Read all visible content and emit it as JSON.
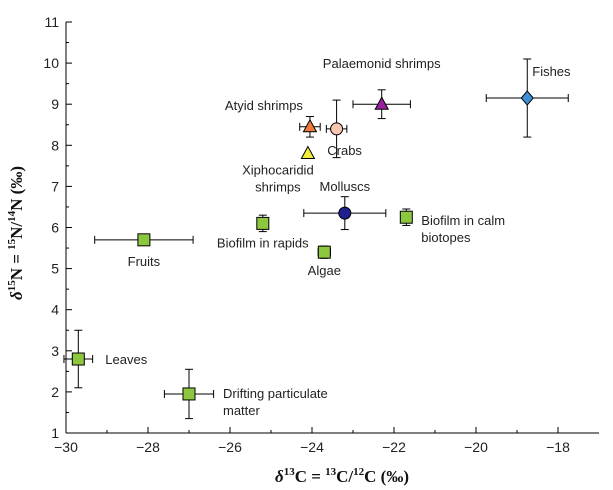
{
  "chart_data": {
    "type": "scatter",
    "xlabel": {
      "delta": "δ",
      "sup1": "13",
      "main": "C = ",
      "sup2": "13",
      "mid": "C/",
      "sup3": "12",
      "end": "C (‰)"
    },
    "ylabel": {
      "delta": "δ",
      "sup1": "15",
      "main": "N = ",
      "sup2": "15",
      "mid": "N/",
      "sup3": "14",
      "end": "N (‰)"
    },
    "xlim": [
      -30,
      -17
    ],
    "ylim": [
      1,
      11
    ],
    "xticks": [
      -30,
      -28,
      -26,
      -24,
      -22,
      -20,
      -18
    ],
    "xtick_labels": [
      "−30",
      "−28",
      "−26",
      "−24",
      "−22",
      "−20",
      "−18"
    ],
    "yticks": [
      1,
      2,
      3,
      4,
      5,
      6,
      7,
      8,
      9,
      10,
      11
    ],
    "ytick_labels": [
      "1",
      "2",
      "3",
      "4",
      "5",
      "6",
      "7",
      "8",
      "9",
      "10",
      "11"
    ],
    "grid": false,
    "points": [
      {
        "id": "leaves",
        "label": "Leaves",
        "x": -29.7,
        "y": 2.8,
        "x_err": 0.35,
        "y_err": 0.7,
        "marker": "square",
        "color": "#8dc63f"
      },
      {
        "id": "drifting",
        "label": "Drifting particulate matter",
        "label_lines": [
          "Drifting particulate",
          "matter"
        ],
        "x": -27.0,
        "y": 1.95,
        "x_err": 0.6,
        "y_err": 0.6,
        "marker": "square",
        "color": "#8dc63f"
      },
      {
        "id": "fruits",
        "label": "Fruits",
        "x": -28.1,
        "y": 5.7,
        "x_err": 1.2,
        "y_err": 0.05,
        "marker": "square",
        "color": "#8dc63f"
      },
      {
        "id": "biofilm-rapids",
        "label": "Biofilm in rapids",
        "x": -25.2,
        "y": 6.1,
        "x_err": 0.05,
        "y_err": 0.2,
        "marker": "square",
        "color": "#8dc63f"
      },
      {
        "id": "algae",
        "label": "Algae",
        "x": -23.7,
        "y": 5.4,
        "x_err": 0.15,
        "y_err": 0.15,
        "marker": "square",
        "color": "#8dc63f"
      },
      {
        "id": "biofilm-calm",
        "label": "Biofilm in calm biotopes",
        "label_lines": [
          "Biofilm in calm",
          "biotopes"
        ],
        "x": -21.7,
        "y": 6.25,
        "x_err": 0.05,
        "y_err": 0.2,
        "marker": "square",
        "color": "#8dc63f"
      },
      {
        "id": "molluscs",
        "label": "Molluscs",
        "x": -23.2,
        "y": 6.35,
        "x_err": 1.0,
        "y_err": 0.4,
        "marker": "circle",
        "color": "#1f1f8f"
      },
      {
        "id": "atyid",
        "label": "Atyid shrimps",
        "x": -24.05,
        "y": 8.45,
        "x_err": 0.25,
        "y_err": 0.25,
        "marker": "triangle",
        "color": "#f07a3c"
      },
      {
        "id": "crabs",
        "label": "Crabs",
        "x": -23.4,
        "y": 8.4,
        "x_err": 0.25,
        "y_err": 0.7,
        "marker": "circle",
        "color": "#f6c6b0"
      },
      {
        "id": "xipho",
        "label": "Xiphocaridid shrimps",
        "label_lines": [
          "Xiphocaridid",
          "shrimps"
        ],
        "x": -24.1,
        "y": 7.8,
        "x_err": 0,
        "y_err": 0,
        "marker": "triangle",
        "color": "#f2ec3a"
      },
      {
        "id": "palaemonid",
        "label": "Palaemonid shrimps",
        "x": -22.3,
        "y": 9.0,
        "x_err": 0.7,
        "y_err": 0.35,
        "marker": "triangle",
        "color": "#9b1fa1"
      },
      {
        "id": "fishes",
        "label": "Fishes",
        "x": -18.75,
        "y": 9.15,
        "x_err": 1.0,
        "y_err": 0.95,
        "marker": "diamond",
        "color": "#3f8fd2"
      }
    ]
  }
}
